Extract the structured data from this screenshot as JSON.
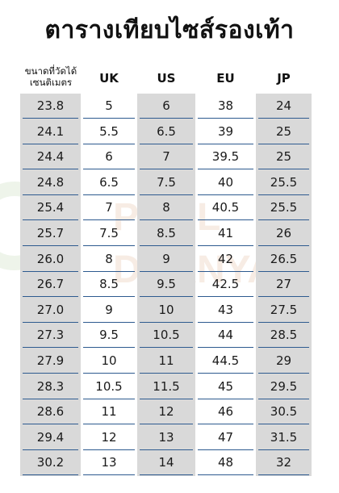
{
  "title": "ตารางเทียบไซส์รองเท้า",
  "headers": {
    "cm_line1": "ขนาดที่วัดได้",
    "cm_line2": "เซนติเมตร",
    "uk": "UK",
    "us": "US",
    "eu": "EU",
    "jp": "JP"
  },
  "watermark": {
    "line1": "PHOL",
    "line2": "DHANYA"
  },
  "rows": [
    {
      "cm": "23.8",
      "uk": "5",
      "us": "6",
      "eu": "38",
      "jp": "24"
    },
    {
      "cm": "24.1",
      "uk": "5.5",
      "us": "6.5",
      "eu": "39",
      "jp": "25"
    },
    {
      "cm": "24.4",
      "uk": "6",
      "us": "7",
      "eu": "39.5",
      "jp": "25"
    },
    {
      "cm": "24.8",
      "uk": "6.5",
      "us": "7.5",
      "eu": "40",
      "jp": "25.5"
    },
    {
      "cm": "25.4",
      "uk": "7",
      "us": "8",
      "eu": "40.5",
      "jp": "25.5"
    },
    {
      "cm": "25.7",
      "uk": "7.5",
      "us": "8.5",
      "eu": "41",
      "jp": "26"
    },
    {
      "cm": "26.0",
      "uk": "8",
      "us": "9",
      "eu": "42",
      "jp": "26.5"
    },
    {
      "cm": "26.7",
      "uk": "8.5",
      "us": "9.5",
      "eu": "42.5",
      "jp": "27"
    },
    {
      "cm": "27.0",
      "uk": "9",
      "us": "10",
      "eu": "43",
      "jp": "27.5"
    },
    {
      "cm": "27.3",
      "uk": "9.5",
      "us": "10.5",
      "eu": "44",
      "jp": "28.5"
    },
    {
      "cm": "27.9",
      "uk": "10",
      "us": "11",
      "eu": "44.5",
      "jp": "29"
    },
    {
      "cm": "28.3",
      "uk": "10.5",
      "us": "11.5",
      "eu": "45",
      "jp": "29.5"
    },
    {
      "cm": "28.6",
      "uk": "11",
      "us": "12",
      "eu": "46",
      "jp": "30.5"
    },
    {
      "cm": "29.4",
      "uk": "12",
      "us": "13",
      "eu": "47",
      "jp": "31.5"
    },
    {
      "cm": "30.2",
      "uk": "13",
      "us": "14",
      "eu": "48",
      "jp": "32"
    }
  ]
}
